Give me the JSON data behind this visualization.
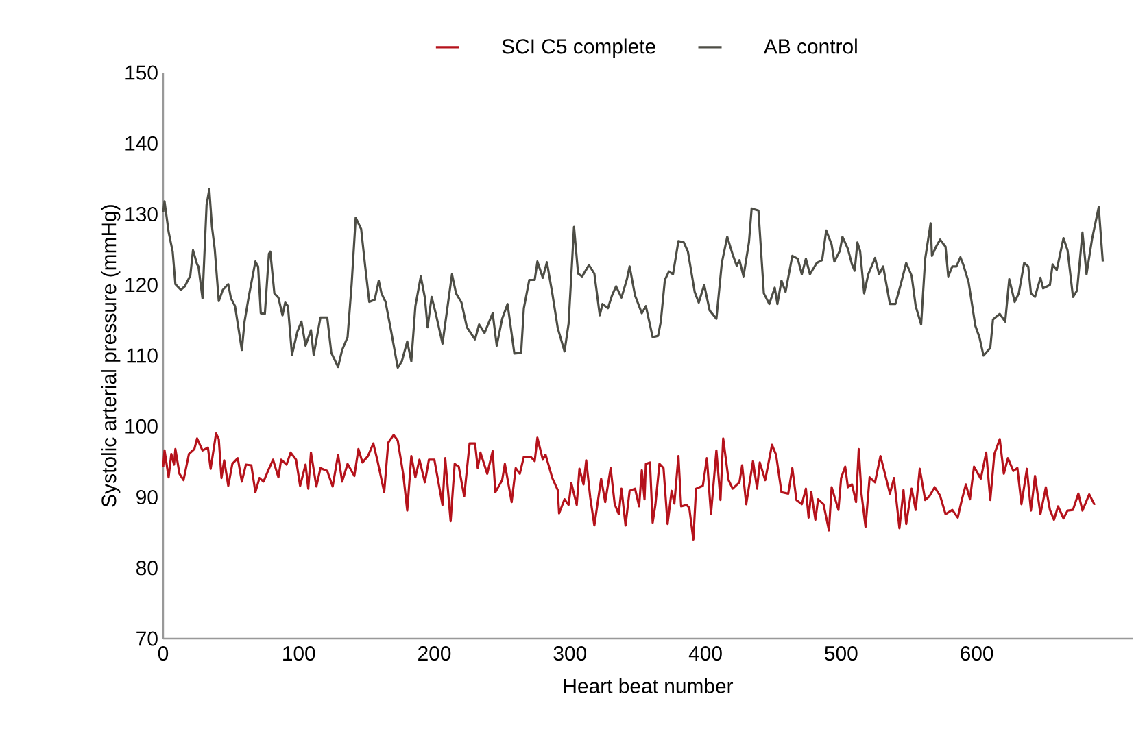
{
  "chart_data": {
    "type": "line",
    "xlabel": "Heart beat number",
    "ylabel": "Systolic arterial pressure (mmHg)",
    "xlim": [
      0,
      715
    ],
    "ylim": [
      70,
      150
    ],
    "xticks": [
      0,
      100,
      200,
      300,
      400,
      500,
      600
    ],
    "yticks": [
      70,
      80,
      90,
      100,
      110,
      120,
      130,
      140,
      150
    ],
    "legend": "top",
    "series": [
      {
        "name": "SCI C5 complete",
        "color": "#b5121b",
        "x": [
          0,
          1,
          4,
          6,
          8,
          9,
          12,
          15,
          19,
          23,
          25,
          29,
          33,
          35,
          39,
          41,
          43,
          45,
          48,
          51,
          55,
          58,
          61,
          65,
          68,
          71,
          74,
          78,
          81,
          85,
          87,
          91,
          94,
          98,
          101,
          105,
          107,
          109,
          113,
          116,
          121,
          125,
          129,
          132,
          136,
          141,
          144,
          147,
          151,
          155,
          158,
          163,
          166,
          170,
          173,
          177,
          180,
          183,
          186,
          189,
          193,
          196,
          200,
          206,
          208,
          212,
          215,
          218,
          222,
          226,
          230,
          232,
          234,
          239,
          243,
          245,
          250,
          252,
          257,
          260,
          263,
          266,
          271,
          274,
          276,
          280,
          282,
          287,
          291,
          292,
          296,
          299,
          301,
          305,
          307,
          310,
          312,
          315,
          318,
          323,
          326,
          330,
          333,
          336,
          338,
          341,
          344,
          348,
          351,
          353,
          355,
          356,
          359,
          361,
          363,
          366,
          369,
          372,
          375,
          377,
          380,
          382,
          386,
          388,
          391,
          393,
          398,
          401,
          404,
          408,
          411,
          413,
          417,
          420,
          425,
          427,
          430,
          435,
          438,
          440,
          444,
          449,
          452,
          456,
          461,
          464,
          467,
          471,
          474,
          476,
          478,
          481,
          483,
          487,
          491,
          493,
          498,
          500,
          503,
          505,
          508,
          511,
          513,
          515,
          518,
          521,
          525,
          529,
          531,
          536,
          539,
          543,
          546,
          548,
          552,
          555,
          558,
          562,
          565,
          569,
          573,
          577,
          582,
          586,
          589,
          592,
          595,
          598,
          603,
          607,
          610,
          613,
          617,
          620,
          623,
          627,
          630,
          633,
          637,
          640,
          643,
          647,
          651,
          654,
          657,
          660,
          664,
          667,
          671,
          675,
          678,
          683,
          687
        ],
        "values": [
          94.3,
          96.6,
          92.8,
          96.1,
          94.6,
          96.8,
          93.3,
          92.4,
          96.1,
          96.8,
          98.3,
          96.6,
          97.0,
          94.0,
          99.0,
          98.2,
          92.7,
          95.2,
          91.6,
          94.7,
          95.5,
          92.2,
          94.6,
          94.5,
          90.7,
          92.7,
          92.2,
          94.0,
          95.3,
          92.8,
          95.3,
          94.6,
          96.3,
          95.3,
          91.6,
          94.6,
          91.2,
          96.3,
          91.5,
          94.1,
          93.7,
          91.5,
          96.0,
          92.2,
          94.7,
          93.0,
          96.8,
          94.9,
          95.8,
          97.6,
          95.2,
          90.7,
          97.7,
          98.8,
          98.0,
          93.3,
          88.1,
          95.8,
          92.8,
          95.3,
          92.1,
          95.3,
          95.3,
          88.9,
          95.5,
          86.6,
          94.7,
          94.3,
          90.1,
          97.6,
          97.6,
          94.1,
          96.3,
          93.3,
          96.5,
          90.7,
          92.4,
          94.7,
          89.3,
          94.1,
          93.3,
          95.7,
          95.7,
          95.1,
          98.4,
          95.3,
          96.0,
          92.7,
          91.0,
          87.7,
          89.7,
          88.9,
          92.0,
          88.9,
          94.0,
          91.8,
          95.2,
          89.9,
          86.0,
          92.6,
          89.3,
          94.1,
          89.0,
          87.6,
          91.2,
          86.0,
          90.9,
          91.2,
          88.7,
          93.8,
          89.7,
          94.7,
          94.9,
          86.4,
          88.9,
          94.7,
          94.1,
          86.2,
          90.9,
          89.1,
          95.8,
          88.7,
          88.9,
          88.5,
          84.0,
          91.2,
          91.6,
          95.5,
          87.6,
          96.6,
          89.6,
          98.3,
          92.4,
          91.2,
          92.1,
          94.5,
          89.0,
          95.1,
          91.2,
          94.9,
          92.4,
          97.4,
          96.0,
          90.7,
          90.5,
          94.1,
          89.6,
          89.0,
          91.2,
          87.1,
          90.7,
          86.8,
          89.7,
          89.0,
          85.3,
          91.4,
          88.2,
          92.7,
          94.3,
          91.4,
          91.8,
          89.3,
          96.8,
          90.5,
          85.8,
          92.8,
          92.1,
          95.8,
          94.3,
          90.5,
          92.7,
          85.6,
          91.0,
          86.2,
          91.2,
          88.2,
          94.0,
          89.6,
          90.1,
          91.4,
          90.2,
          87.6,
          88.2,
          87.1,
          89.6,
          91.8,
          89.7,
          94.3,
          92.6,
          96.3,
          89.6,
          96.1,
          98.2,
          93.3,
          95.5,
          93.7,
          94.1,
          89.0,
          94.0,
          88.1,
          93.0,
          87.6,
          91.4,
          88.2,
          86.8,
          88.7,
          87.0,
          88.1,
          88.2,
          90.5,
          88.1,
          90.4,
          88.9
        ]
      },
      {
        "name": "AB control",
        "color": "#4d4d45",
        "x": [
          0,
          1,
          4,
          7,
          9,
          13,
          16,
          20,
          22,
          25,
          26,
          29,
          32,
          34,
          36,
          38,
          41,
          44,
          48,
          50,
          53,
          58,
          60,
          63,
          68,
          70,
          72,
          75,
          78,
          79,
          82,
          85,
          88,
          90,
          92,
          95,
          99,
          102,
          105,
          109,
          111,
          116,
          121,
          124,
          129,
          132,
          136,
          139,
          142,
          146,
          149,
          152,
          156,
          159,
          161,
          164,
          168,
          173,
          176,
          180,
          183,
          186,
          190,
          193,
          195,
          198,
          201,
          206,
          213,
          216,
          220,
          224,
          230,
          233,
          237,
          243,
          246,
          250,
          254,
          259,
          264,
          266,
          270,
          274,
          276,
          280,
          283,
          287,
          291,
          296,
          299,
          303,
          306,
          309,
          314,
          318,
          322,
          324,
          328,
          331,
          334,
          338,
          342,
          344,
          348,
          353,
          356,
          361,
          365,
          367,
          370,
          373,
          376,
          380,
          384,
          387,
          392,
          395,
          399,
          403,
          408,
          412,
          416,
          420,
          423,
          425,
          428,
          432,
          434,
          439,
          443,
          447,
          451,
          453,
          456,
          459,
          464,
          468,
          471,
          474,
          477,
          482,
          486,
          489,
          493,
          495,
          499,
          501,
          505,
          508,
          510,
          512,
          514,
          517,
          520,
          525,
          528,
          531,
          536,
          540,
          544,
          548,
          552,
          555,
          559,
          562,
          566,
          567,
          570,
          573,
          577,
          579,
          582,
          585,
          588,
          590,
          594,
          599,
          602,
          605,
          610,
          612,
          617,
          621,
          624,
          628,
          631,
          635,
          638,
          640,
          643,
          647,
          649,
          654,
          656,
          659,
          664,
          667,
          671,
          674,
          678,
          681,
          685,
          690,
          693
        ],
        "values": [
          130.3,
          131.8,
          127.5,
          124.7,
          120.1,
          119.3,
          119.8,
          121.3,
          124.9,
          122.9,
          122.6,
          118.1,
          131.3,
          133.5,
          128.2,
          125.1,
          117.7,
          119.3,
          120.1,
          118.1,
          117.0,
          110.8,
          114.8,
          118.2,
          123.3,
          122.6,
          116.0,
          115.9,
          124.4,
          124.7,
          118.8,
          118.2,
          115.7,
          117.5,
          117.0,
          110.1,
          113.4,
          114.8,
          111.4,
          113.6,
          110.1,
          115.4,
          115.4,
          110.4,
          108.4,
          110.8,
          112.6,
          120.1,
          129.5,
          127.9,
          122.6,
          117.6,
          117.9,
          120.6,
          118.8,
          117.6,
          113.6,
          108.3,
          109.2,
          112.0,
          109.2,
          117.0,
          121.2,
          118.2,
          114.0,
          118.3,
          116.0,
          111.7,
          121.5,
          118.8,
          117.5,
          114.0,
          112.3,
          114.4,
          113.2,
          116.0,
          111.4,
          115.2,
          117.3,
          110.3,
          110.4,
          116.7,
          120.7,
          120.7,
          123.3,
          121.0,
          123.2,
          118.8,
          113.9,
          110.6,
          114.5,
          128.2,
          121.6,
          121.2,
          122.8,
          121.6,
          115.7,
          117.3,
          116.7,
          118.5,
          119.8,
          118.2,
          120.8,
          122.6,
          118.5,
          116.0,
          117.0,
          112.6,
          112.8,
          114.8,
          120.7,
          121.9,
          121.5,
          126.2,
          126.0,
          124.7,
          119.0,
          117.5,
          120.0,
          116.4,
          115.2,
          123.1,
          126.8,
          124.3,
          122.7,
          123.5,
          121.2,
          126.0,
          130.8,
          130.5,
          118.8,
          117.3,
          119.6,
          117.3,
          120.6,
          119.0,
          124.1,
          123.7,
          121.5,
          123.7,
          121.5,
          123.1,
          123.5,
          127.7,
          125.7,
          123.3,
          124.8,
          126.8,
          125.1,
          122.9,
          122.0,
          126.0,
          124.8,
          118.8,
          121.5,
          123.8,
          121.5,
          122.6,
          117.3,
          117.3,
          120.1,
          123.1,
          121.3,
          117.0,
          114.4,
          123.7,
          128.7,
          124.1,
          125.4,
          126.4,
          125.4,
          121.2,
          122.6,
          122.6,
          123.9,
          122.9,
          120.4,
          114.2,
          112.6,
          110.0,
          111.1,
          115.1,
          115.9,
          114.8,
          120.8,
          117.6,
          118.8,
          123.1,
          122.6,
          118.8,
          118.3,
          121.0,
          119.5,
          120.0,
          122.9,
          122.1,
          126.6,
          124.9,
          118.3,
          119.2,
          127.4,
          121.5,
          126.4,
          131.0,
          123.3
        ]
      }
    ]
  }
}
